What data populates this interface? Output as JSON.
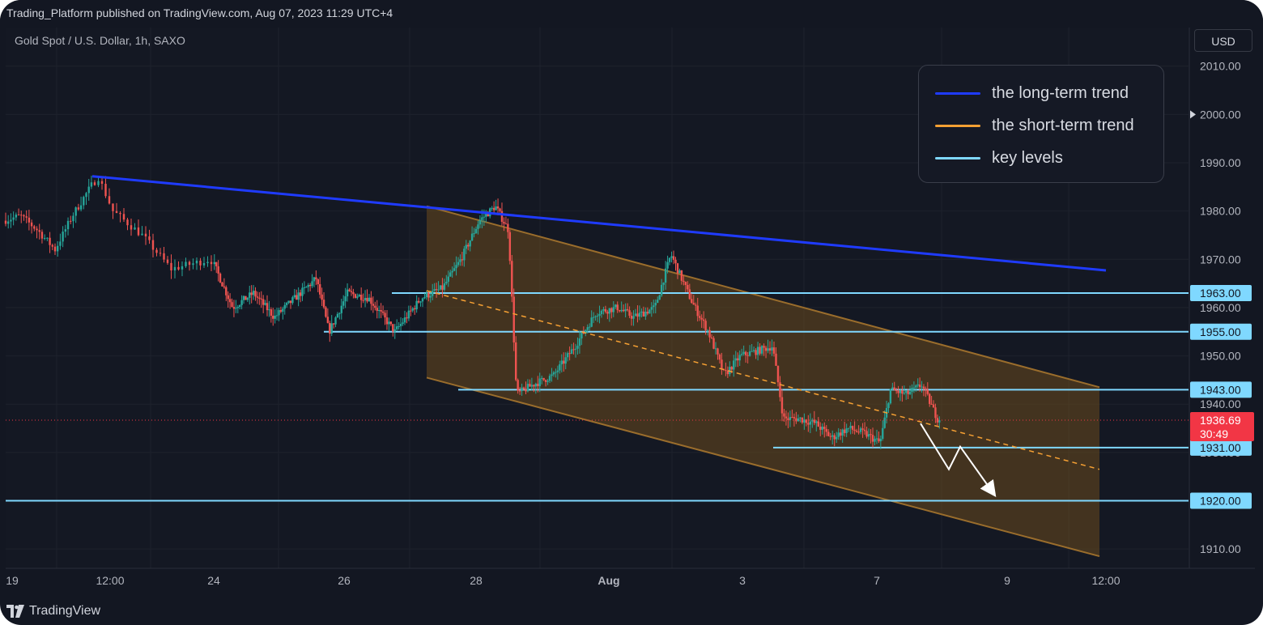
{
  "header": {
    "published_text": "Trading_Platform published on TradingView.com, Aug 07, 2023 11:29 UTC+4",
    "symbol_text": "Gold Spot / U.S. Dollar, 1h, SAXO",
    "currency_button": "USD"
  },
  "footer": {
    "brand": "TradingView"
  },
  "legend": [
    {
      "label": "the long-term trend",
      "color": "#1f3bff"
    },
    {
      "label": "the short-term trend",
      "color": "#f5a033"
    },
    {
      "label": "key levels",
      "color": "#7fd8ff"
    }
  ],
  "colors": {
    "background": "#131722",
    "up_candle": "#26a69a",
    "down_candle": "#ef5350",
    "channel_fill": "#6a4a1e",
    "channel_border": "#9a6d2c",
    "key_level": "#7fd8ff",
    "long_trend": "#1f3bff",
    "short_trend": "#f5a033",
    "last_price": "#f23645"
  },
  "chart_data": {
    "type": "candlestick",
    "title": "Gold Spot / U.S. Dollar, 1h, SAXO",
    "x_ticks": [
      "19",
      "12:00",
      "24",
      "26",
      "28",
      "Aug",
      "3",
      "7",
      "9",
      "12:00"
    ],
    "y_ticks": [
      2010,
      2000,
      1990,
      1980,
      1970,
      1960,
      1950,
      1940,
      1930,
      1920,
      1910
    ],
    "ylim": [
      1906,
      2018
    ],
    "key_levels": [
      1963,
      1955,
      1943,
      1931,
      1920
    ],
    "last_price": {
      "value": "1936.69",
      "countdown": "30:49"
    },
    "current_price_marker": 2000,
    "legend_position": "top-right",
    "grid": true,
    "price_path_points": [
      [
        0,
        1978
      ],
      [
        0.05,
        1979
      ],
      [
        0.1,
        1976
      ],
      [
        0.15,
        1972
      ],
      [
        0.2,
        1979
      ],
      [
        0.27,
        1987
      ],
      [
        0.3,
        1980
      ],
      [
        0.36,
        1975
      ],
      [
        0.42,
        1968
      ],
      [
        0.5,
        1970
      ],
      [
        0.58,
        1960
      ],
      [
        0.66,
        1963
      ],
      [
        0.74,
        1958
      ],
      [
        0.82,
        1962
      ],
      [
        0.9,
        1966
      ],
      [
        0.95,
        1955
      ],
      [
        1.02,
        1963
      ],
      [
        1.1,
        1962
      ],
      [
        1.2,
        1955
      ],
      [
        1.3,
        1962
      ],
      [
        1.38,
        1964
      ],
      [
        1.45,
        1970
      ],
      [
        1.52,
        1978
      ],
      [
        1.58,
        1981
      ],
      [
        1.63,
        1976
      ],
      [
        1.66,
        1942
      ],
      [
        1.72,
        1944
      ],
      [
        1.8,
        1946
      ],
      [
        1.88,
        1952
      ],
      [
        1.96,
        1959
      ],
      [
        2.04,
        1960
      ],
      [
        2.1,
        1958
      ],
      [
        2.18,
        1960
      ],
      [
        2.24,
        1971
      ],
      [
        2.28,
        1966
      ],
      [
        2.32,
        1961
      ],
      [
        2.38,
        1955
      ],
      [
        2.44,
        1946
      ],
      [
        2.5,
        1950
      ],
      [
        2.56,
        1951
      ],
      [
        2.62,
        1952
      ],
      [
        2.66,
        1937
      ],
      [
        2.72,
        1937
      ],
      [
        2.78,
        1936
      ],
      [
        2.84,
        1933
      ],
      [
        2.9,
        1935
      ],
      [
        2.96,
        1934
      ],
      [
        3.02,
        1932
      ],
      [
        3.06,
        1943
      ],
      [
        3.12,
        1942
      ],
      [
        3.18,
        1944
      ],
      [
        3.24,
        1937
      ]
    ]
  }
}
